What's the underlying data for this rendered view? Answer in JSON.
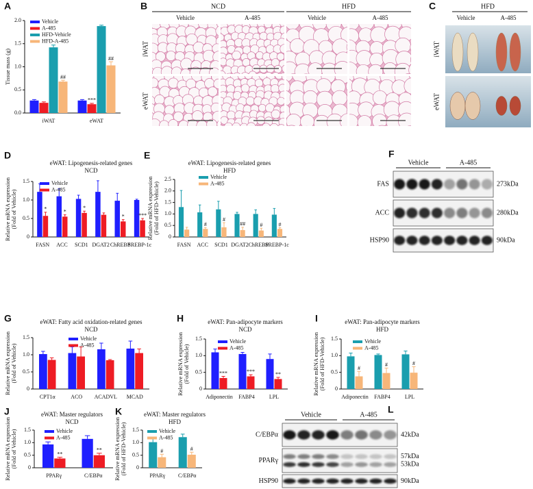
{
  "chart_data": [
    {
      "type": "bar",
      "panel": "A",
      "ylabel": [
        "Tissue mass (g)"
      ],
      "categories": [
        "iWAT",
        "eWAT"
      ],
      "ylim": [
        0,
        2
      ],
      "yticks": [
        {
          "value": 0,
          "label": "0.0"
        },
        0.5,
        {
          "value": 1,
          "label": "1.0"
        },
        1.5,
        {
          "value": 2,
          "label": "2.0"
        }
      ],
      "legend": "upper left",
      "series": [
        {
          "name": "Vehicle",
          "color": "#1f1fff",
          "values": [
            0.27,
            0.27
          ],
          "errors": [
            0.02,
            0.02
          ]
        },
        {
          "name": "A-485",
          "color": "#ee1c24",
          "values": [
            0.22,
            0.19
          ],
          "errors": [
            0.02,
            0.02
          ],
          "significance": [
            null,
            "***"
          ]
        },
        {
          "name": "HFD-Vehicle",
          "color": "#1a9eae",
          "values": [
            1.42,
            1.88
          ],
          "errors": [
            0.05,
            0.02
          ]
        },
        {
          "name": "HFD-A-485",
          "color": "#f7b679",
          "values": [
            0.68,
            1.03
          ],
          "errors": [
            0.03,
            0.08
          ],
          "significance": [
            "##",
            "##"
          ]
        }
      ]
    },
    {
      "type": "bar",
      "panel": "D",
      "title": [
        "eWAT: Lipogenesis-related genes",
        "NCD"
      ],
      "ylabel": [
        "Relative mRNA expression",
        "(Fold of Vehicle)"
      ],
      "categories": [
        "FASN",
        "ACC",
        "SCD1",
        "DGAT2",
        "ChREBP",
        "SREBP-1c"
      ],
      "ylim": [
        0,
        1.5
      ],
      "yticks": [
        0,
        0.5,
        {
          "value": 1,
          "label": "1.0"
        },
        1.5
      ],
      "legend": "upper left",
      "series": [
        {
          "name": "Vehicle",
          "color": "#1f1fff",
          "values": [
            1.22,
            1.1,
            1.03,
            1.22,
            0.98,
            1.0
          ],
          "errors": [
            0.22,
            0.2,
            0.1,
            0.3,
            0.2,
            0.02
          ]
        },
        {
          "name": "A-485",
          "color": "#ee1c24",
          "values": [
            0.57,
            0.55,
            0.65,
            0.6,
            0.42,
            0.45
          ],
          "errors": [
            0.1,
            0.05,
            0.05,
            0.05,
            0.05,
            0.05
          ],
          "significance": [
            "*",
            "*",
            "*",
            null,
            "*",
            "***"
          ]
        }
      ]
    },
    {
      "type": "bar",
      "panel": "E",
      "title": [
        "eWAT: Lipogenesis-related genes",
        "HFD"
      ],
      "ylabel": [
        "Relative mRNA expression",
        "(Fold of HFD-Vehicle)"
      ],
      "categories": [
        "FASN",
        "ACC",
        "SCD1",
        "DGAT2",
        "ChREBP",
        "SREBP-1c"
      ],
      "ylim": [
        0,
        2.5
      ],
      "yticks": [
        0,
        0.5,
        {
          "value": 1,
          "label": "1.0"
        },
        1.5,
        {
          "value": 2,
          "label": "2.0"
        },
        2.5
      ],
      "legend": "upper left",
      "series": [
        {
          "name": "Vehicle",
          "color": "#1a9eae",
          "values": [
            1.3,
            1.07,
            1.2,
            1.0,
            1.0,
            0.97
          ],
          "errors": [
            0.72,
            0.32,
            0.35,
            0.07,
            0.18,
            0.27
          ]
        },
        {
          "name": "A-485",
          "color": "#f7b679",
          "values": [
            0.32,
            0.35,
            0.42,
            0.3,
            0.28,
            0.35
          ],
          "errors": [
            0.1,
            0.06,
            0.2,
            0.12,
            0.1,
            0.05
          ],
          "significance": [
            null,
            "#",
            "#",
            "##",
            "#",
            "#"
          ]
        }
      ]
    },
    {
      "type": "bar",
      "panel": "G",
      "title": [
        "eWAT: Fatty acid oxidation-related genes",
        "NCD"
      ],
      "ylabel": [
        "Relative mRNA expression",
        "(Fold of Vehicle)"
      ],
      "categories": [
        "CPT1α",
        "ACO",
        "ACADVL",
        "MCAD"
      ],
      "ylim": [
        0,
        1.5
      ],
      "yticks": [
        0,
        0.5,
        {
          "value": 1,
          "label": "1.0"
        },
        1.5
      ],
      "legend": "upper left",
      "series": [
        {
          "name": "Vehicle",
          "color": "#1f1fff",
          "values": [
            1.02,
            1.05,
            1.16,
            1.18
          ],
          "errors": [
            0.08,
            0.18,
            0.18,
            0.22
          ]
        },
        {
          "name": "A-485",
          "color": "#ee1c24",
          "values": [
            0.85,
            0.95,
            0.84,
            1.05
          ],
          "errors": [
            0.06,
            0.28,
            0.02,
            0.12
          ]
        }
      ]
    },
    {
      "type": "bar",
      "panel": "H",
      "title": [
        "eWAT: Pan-adipocyte markers",
        "NCD"
      ],
      "ylabel": [
        "Relative mRNA expression",
        "(Fold of Vehicle)"
      ],
      "categories": [
        "Adiponectin",
        "FABP4",
        "LPL"
      ],
      "ylim": [
        0,
        1.5
      ],
      "yticks": [
        0,
        0.5,
        {
          "value": 1,
          "label": "1.0"
        },
        1.5
      ],
      "legend": "upper left",
      "series": [
        {
          "name": "Vehicle",
          "color": "#1f1fff",
          "values": [
            1.1,
            1.05,
            0.9
          ],
          "errors": [
            0.1,
            0.05,
            0.15
          ]
        },
        {
          "name": "A-485",
          "color": "#ee1c24",
          "values": [
            0.33,
            0.38,
            0.3
          ],
          "errors": [
            0.05,
            0.05,
            0.05
          ],
          "significance": [
            "***",
            "***",
            "**"
          ]
        }
      ]
    },
    {
      "type": "bar",
      "panel": "I",
      "title": [
        "eWAT: Pan-adipocyte markers",
        "HFD"
      ],
      "ylabel": [
        "Relative mRNA expression",
        "(Fold of HFD-Vehicle)"
      ],
      "categories": [
        "Adiponectin",
        "FABP4",
        "LPL"
      ],
      "ylim": [
        0,
        1.5
      ],
      "yticks": [
        0,
        0.5,
        {
          "value": 1,
          "label": "1.0"
        },
        1.5
      ],
      "legend": "upper left",
      "series": [
        {
          "name": "Vehicle",
          "color": "#1a9eae",
          "values": [
            0.98,
            1.02,
            1.04
          ],
          "errors": [
            0.1,
            0.03,
            0.1
          ]
        },
        {
          "name": "A-485",
          "color": "#f7b679",
          "values": [
            0.38,
            0.48,
            0.49
          ],
          "errors": [
            0.15,
            0.15,
            0.18
          ],
          "significance": [
            "#",
            "#",
            "#"
          ]
        }
      ]
    },
    {
      "type": "bar",
      "panel": "J",
      "title": [
        "eWAT: Master regulators",
        "NCD"
      ],
      "ylabel": [
        "Relative mRNA expression",
        "(Fold of Vehicle)"
      ],
      "categories": [
        "PPARγ",
        "C/EBPα"
      ],
      "ylim": [
        0,
        1.5
      ],
      "yticks": [
        0,
        0.5,
        {
          "value": 1,
          "label": "1.0"
        },
        1.5
      ],
      "legend": "upper left",
      "series": [
        {
          "name": "Vehicle",
          "color": "#1f1fff",
          "values": [
            0.93,
            1.15
          ],
          "errors": [
            0.1,
            0.13
          ]
        },
        {
          "name": "A-485",
          "color": "#ee1c24",
          "values": [
            0.37,
            0.5
          ],
          "errors": [
            0.05,
            0.08
          ],
          "significance": [
            "**",
            "**"
          ]
        }
      ]
    },
    {
      "type": "bar",
      "panel": "K",
      "title": [
        "eWAT: Master regulators",
        "HFD"
      ],
      "ylabel": [
        "Relative mRNA expression",
        "(Fold of HFD-Vehicle)"
      ],
      "categories": [
        "PPARγ",
        "C/EBPα"
      ],
      "ylim": [
        0,
        1.5
      ],
      "yticks": [
        0,
        0.5,
        {
          "value": 1,
          "label": "1.0"
        },
        1.5
      ],
      "legend": "upper left",
      "series": [
        {
          "name": "Vehicle",
          "color": "#1a9eae",
          "values": [
            1.02,
            1.22
          ],
          "errors": [
            0.15,
            0.12
          ]
        },
        {
          "name": "A-485",
          "color": "#f7b679",
          "values": [
            0.42,
            0.52
          ],
          "errors": [
            0.12,
            0.1
          ],
          "significance": [
            "#",
            "#"
          ]
        }
      ]
    }
  ],
  "figures": {
    "B": {
      "panel": "B",
      "groups": [
        "NCD",
        "HFD"
      ],
      "columns": [
        "Vehicle",
        "A-485",
        "Vehicle",
        "A-485"
      ],
      "rows": [
        "iWAT",
        "eWAT"
      ]
    },
    "C": {
      "panel": "C",
      "title": "HFD",
      "columns": [
        "Vehicle",
        "A-485"
      ],
      "rows": [
        "iWAT",
        "eWAT"
      ]
    },
    "F": {
      "panel": "F",
      "groups": [
        "Vehicle",
        "A-485"
      ],
      "rows": [
        {
          "protein": "FAS",
          "sizes": [
            "273kDa"
          ]
        },
        {
          "protein": "ACC",
          "sizes": [
            "280kDa"
          ]
        },
        {
          "protein": "HSP90",
          "sizes": [
            "90kDa"
          ]
        }
      ]
    },
    "L": {
      "panel": "L",
      "groups": [
        "Vehicle",
        "A-485"
      ],
      "rows": [
        {
          "protein": "C/EBPα",
          "sizes": [
            "42kDa"
          ]
        },
        {
          "protein": "PPARγ",
          "sizes": [
            "57kDa",
            "53kDa"
          ]
        },
        {
          "protein": "HSP90",
          "sizes": [
            "90kDa"
          ]
        }
      ]
    }
  }
}
